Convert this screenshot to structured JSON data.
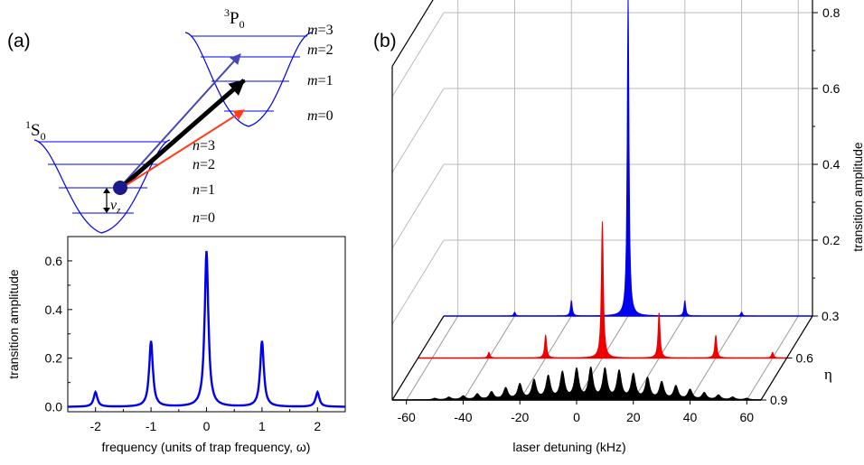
{
  "panel_a": {
    "label": "(a)",
    "state_lower": "S",
    "state_lower_sup": "1",
    "state_lower_sub": "0",
    "state_upper": "P",
    "state_upper_sup": "3",
    "state_upper_sub": "0",
    "lower_levels": [
      {
        "var": "n",
        "eq": "=3"
      },
      {
        "var": "n",
        "eq": "=2"
      },
      {
        "var": "n",
        "eq": "=1"
      },
      {
        "var": "n",
        "eq": "=0"
      }
    ],
    "upper_levels": [
      {
        "var": "m",
        "eq": "=3"
      },
      {
        "var": "m",
        "eq": "=2"
      },
      {
        "var": "m",
        "eq": "=1"
      },
      {
        "var": "m",
        "eq": "=0"
      }
    ],
    "nu_symbol": "ν",
    "nu_sub": "z"
  },
  "panel_b": {
    "label": "(b)"
  },
  "colors": {
    "blue": "#0000ee",
    "red": "#ee0000",
    "black": "#000000",
    "dark_blue": "#1a1a8c",
    "orange_red": "#ff3b1a",
    "arrow_blue": "#4747b8",
    "grid": "#b8b8b8"
  },
  "chart_data": [
    {
      "type": "line",
      "xlabel": "frequency (units of trap frequency, ω)",
      "ylabel": "transition amplitude",
      "xlim": [
        -2.5,
        2.5
      ],
      "ylim": [
        -0.02,
        0.7
      ],
      "xticks": [
        "-2",
        "-1",
        "0",
        "1",
        "2"
      ],
      "yticks": [
        "0.0",
        "0.2",
        "0.4",
        "0.6"
      ],
      "series": [
        {
          "color": "#0000ee",
          "peaks": [
            {
              "x": -2,
              "y": 0.06
            },
            {
              "x": -1,
              "y": 0.27
            },
            {
              "x": 0,
              "y": 0.64
            },
            {
              "x": 1,
              "y": 0.27
            },
            {
              "x": 2,
              "y": 0.06
            }
          ],
          "width": 0.04
        }
      ]
    },
    {
      "type": "area",
      "xlabel": "laser detuning (kHz)",
      "zlabel": "transition amplitude",
      "ylabel": "η",
      "xlim": [
        -65,
        65
      ],
      "zlim": [
        0,
        0.88
      ],
      "xticks": [
        "-60",
        "-40",
        "-20",
        "0",
        "20",
        "40",
        "60"
      ],
      "zticks": [
        "0.2",
        "0.4",
        "0.6",
        "0.8"
      ],
      "eta_ticks": [
        "0.3",
        "0.6",
        "0.9"
      ],
      "series": [
        {
          "eta": 0.3,
          "color": "#0000ee",
          "peaks": [
            {
              "x": -40,
              "y": 0.01
            },
            {
              "x": -20,
              "y": 0.04
            },
            {
              "x": 0,
              "y": 0.84
            },
            {
              "x": 20,
              "y": 0.04
            },
            {
              "x": 40,
              "y": 0.01
            }
          ]
        },
        {
          "eta": 0.6,
          "color": "#ee0000",
          "peaks": [
            {
              "x": -40,
              "y": 0.015
            },
            {
              "x": -20,
              "y": 0.06
            },
            {
              "x": 0,
              "y": 0.36
            },
            {
              "x": 20,
              "y": 0.12
            },
            {
              "x": 40,
              "y": 0.06
            },
            {
              "x": 60,
              "y": 0.015
            }
          ]
        },
        {
          "eta": 0.9,
          "color": "#000000",
          "peaks": [
            {
              "x": -50,
              "y": 0.004
            },
            {
              "x": -45,
              "y": 0.007
            },
            {
              "x": -40,
              "y": 0.01
            },
            {
              "x": -35,
              "y": 0.015
            },
            {
              "x": -30,
              "y": 0.02
            },
            {
              "x": -25,
              "y": 0.03
            },
            {
              "x": -20,
              "y": 0.04
            },
            {
              "x": -15,
              "y": 0.05
            },
            {
              "x": -10,
              "y": 0.06
            },
            {
              "x": -5,
              "y": 0.07
            },
            {
              "x": 0,
              "y": 0.078
            },
            {
              "x": 5,
              "y": 0.08
            },
            {
              "x": 10,
              "y": 0.078
            },
            {
              "x": 15,
              "y": 0.073
            },
            {
              "x": 20,
              "y": 0.065
            },
            {
              "x": 25,
              "y": 0.055
            },
            {
              "x": 30,
              "y": 0.045
            },
            {
              "x": 35,
              "y": 0.035
            },
            {
              "x": 40,
              "y": 0.026
            },
            {
              "x": 45,
              "y": 0.018
            },
            {
              "x": 50,
              "y": 0.012
            },
            {
              "x": 55,
              "y": 0.007
            },
            {
              "x": 60,
              "y": 0.004
            }
          ]
        }
      ]
    }
  ]
}
